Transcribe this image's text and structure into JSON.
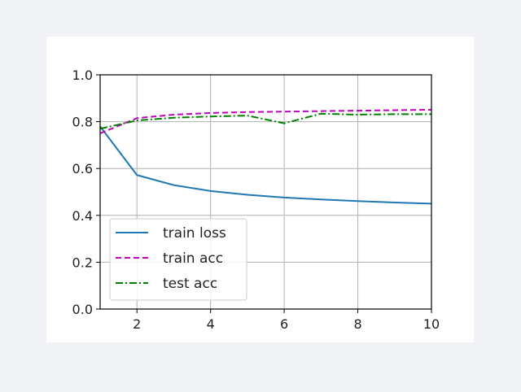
{
  "chart_data": {
    "type": "line",
    "title": "",
    "xlabel": "",
    "ylabel": "",
    "xlim": [
      1,
      10
    ],
    "ylim": [
      0,
      1.0
    ],
    "x": [
      1,
      2,
      3,
      4,
      5,
      6,
      7,
      8,
      9,
      10
    ],
    "xticks": [
      2,
      4,
      6,
      8,
      10
    ],
    "xtick_labels": [
      "2",
      "4",
      "6",
      "8",
      "10"
    ],
    "yticks": [
      0.0,
      0.2,
      0.4,
      0.6,
      0.8,
      1.0
    ],
    "ytick_labels": [
      "0.0",
      "0.2",
      "0.4",
      "0.6",
      "0.8",
      "1.0"
    ],
    "grid": true,
    "legend_position": "lower-left",
    "series": [
      {
        "name": "train loss",
        "color": "#1f77b4",
        "style": "solid",
        "values": [
          0.78,
          0.572,
          0.529,
          0.504,
          0.488,
          0.476,
          0.468,
          0.461,
          0.455,
          0.45
        ]
      },
      {
        "name": "train acc",
        "color": "#bf00bf",
        "style": "dashed",
        "values": [
          0.75,
          0.815,
          0.83,
          0.837,
          0.841,
          0.843,
          0.845,
          0.847,
          0.849,
          0.851
        ]
      },
      {
        "name": "test acc",
        "color": "#008000",
        "style": "dashdot",
        "values": [
          0.77,
          0.805,
          0.817,
          0.822,
          0.826,
          0.793,
          0.834,
          0.83,
          0.832,
          0.832
        ]
      }
    ]
  }
}
